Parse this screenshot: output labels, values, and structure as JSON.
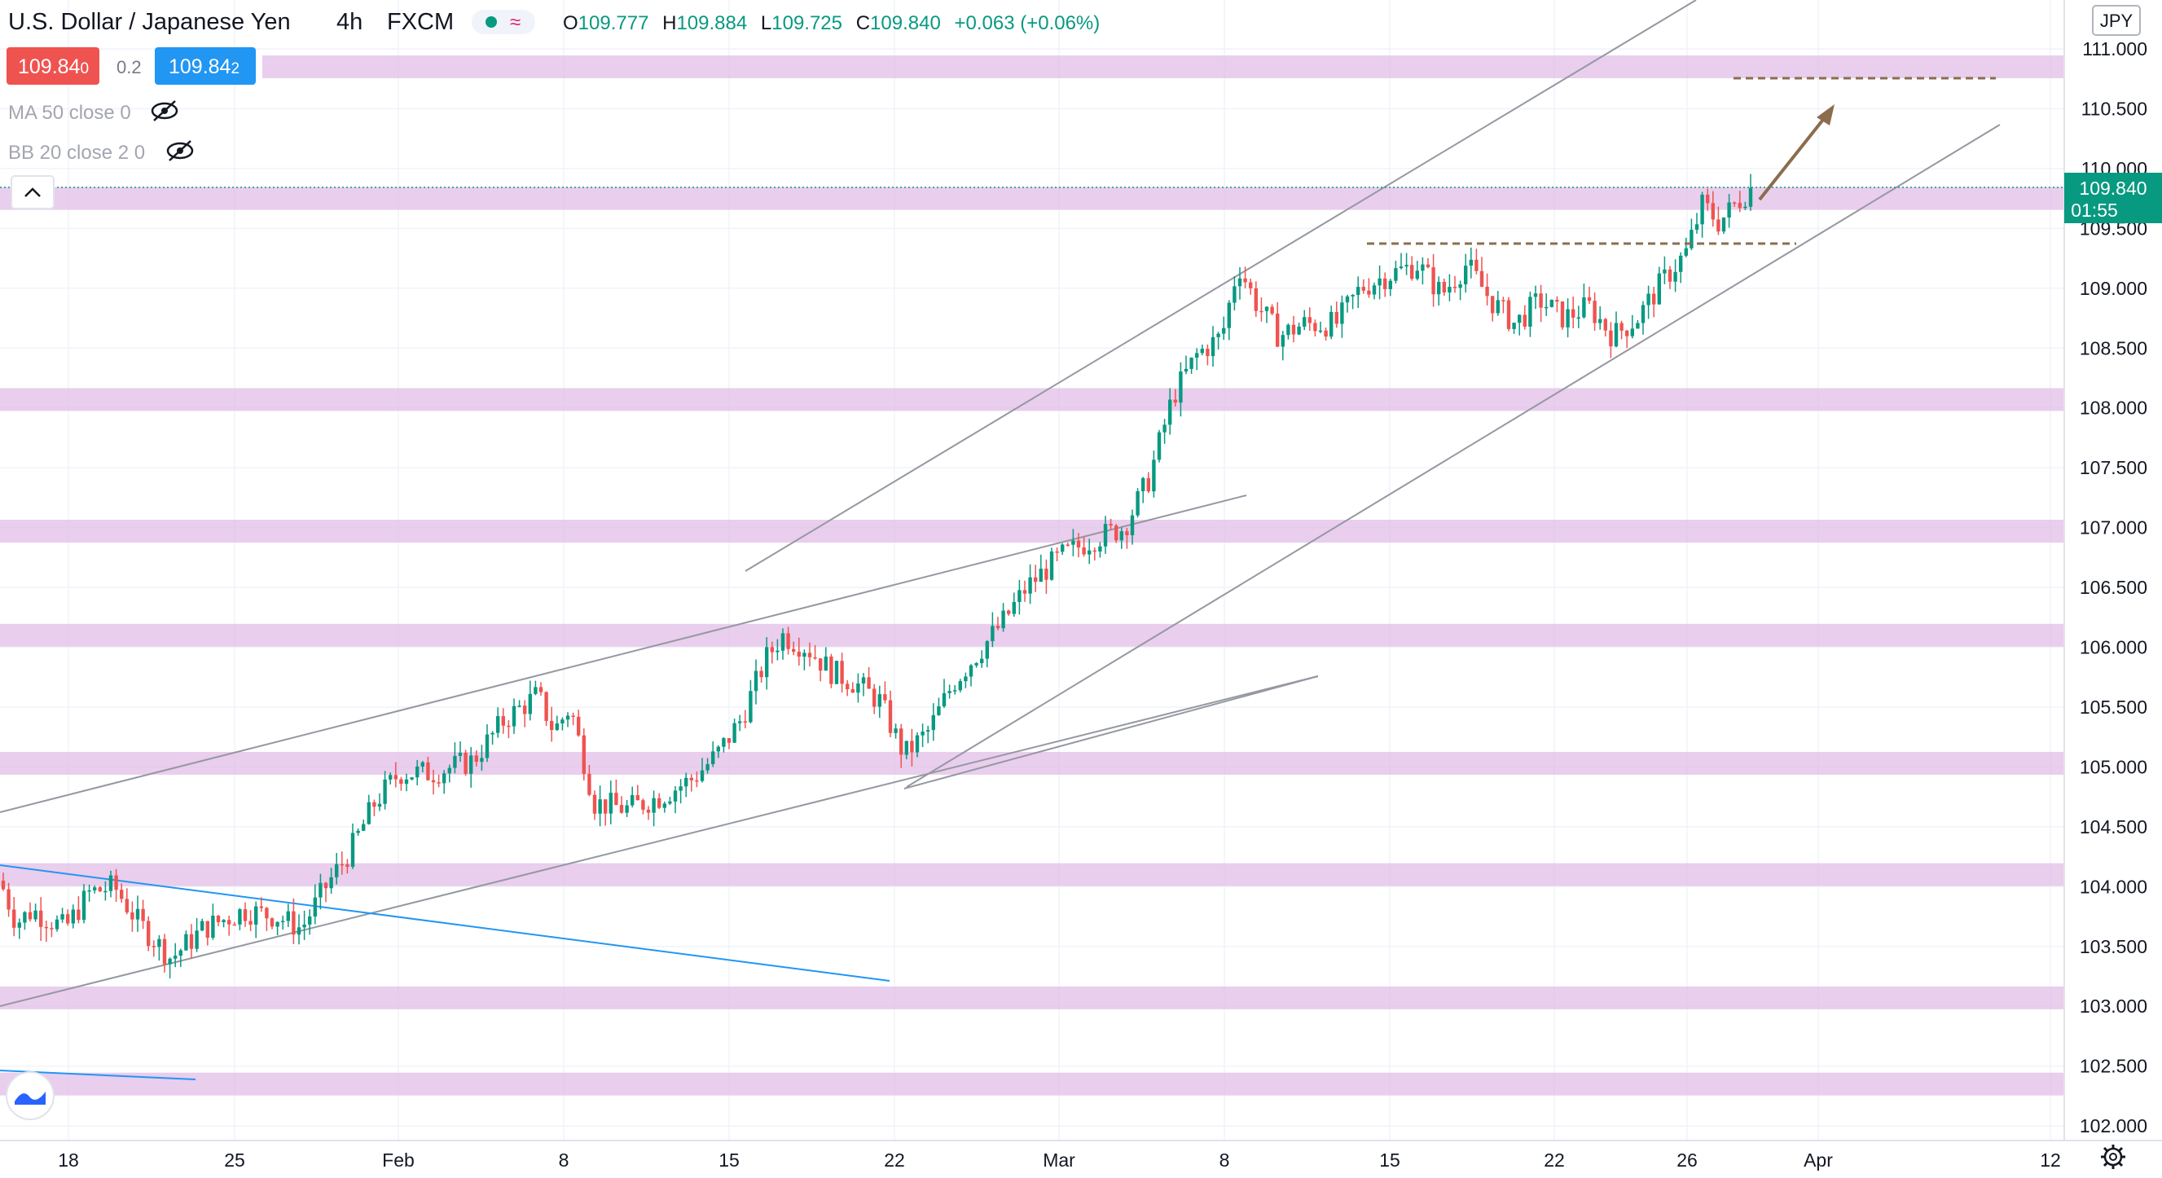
{
  "header": {
    "symbol": "U.S. Dollar / Japanese Yen",
    "interval": "4h",
    "source": "FXCM",
    "ohlc": {
      "open_label": "O",
      "open": "109.777",
      "high_label": "H",
      "high": "109.884",
      "low_label": "L",
      "low": "109.725",
      "close_label": "C",
      "close": "109.840",
      "change": "+0.063 (+0.06%)"
    }
  },
  "trade": {
    "sell_price": "109.84",
    "sell_sup": "0",
    "spread": "0.2",
    "buy_price": "109.84",
    "buy_sup": "2",
    "sell_color": "#ef5350",
    "buy_color": "#2196f3"
  },
  "indicators": [
    {
      "label": "MA 50 close 0"
    },
    {
      "label": "BB 20 close 2 0"
    }
  ],
  "currency_button": "JPY",
  "price_axis": {
    "ticks": [
      "111.000",
      "110.500",
      "110.000",
      "109.500",
      "109.000",
      "108.500",
      "108.000",
      "107.500",
      "107.000",
      "106.500",
      "106.000",
      "105.500",
      "105.000",
      "104.500",
      "104.000",
      "103.500",
      "103.000",
      "102.500",
      "102.000"
    ],
    "current_price": "109.840",
    "countdown": "01:55",
    "current_color": "#089981"
  },
  "time_axis": {
    "ticks": [
      "18",
      "25",
      "Feb",
      "8",
      "15",
      "22",
      "Mar",
      "8",
      "15",
      "22",
      "26",
      "Apr",
      "12"
    ]
  },
  "chart_data": {
    "type": "candlestick",
    "ylim": [
      101.9,
      111.4
    ],
    "y_scale": "linear",
    "grid": true,
    "support_resistance_zones": [
      110.85,
      109.75,
      108.07,
      106.97,
      106.1,
      105.03,
      104.1,
      103.07,
      102.35
    ],
    "last_price": 109.84,
    "up_color": "#089981",
    "down_color": "#ef5350",
    "zone_color": "#e1bee7",
    "trendline_color": "#9598a1",
    "blue_line_color": "#2196f3",
    "annotation_color": "#8b6d4e"
  }
}
